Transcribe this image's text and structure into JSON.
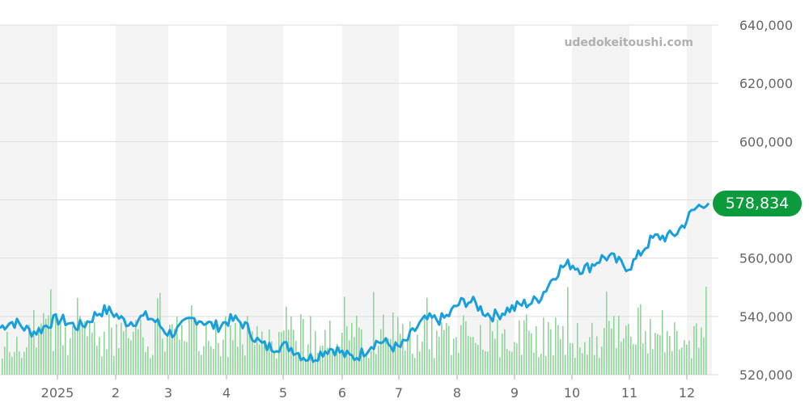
{
  "watermark": "udedokeitoushi.com",
  "current_price": "578,834",
  "colors": {
    "line": "#1a9fdd",
    "bar": "#8fd69a",
    "band": "#f4f4f4",
    "grid": "#dddddd",
    "badge": "#0b9a3c"
  },
  "chart_data": {
    "type": "line",
    "title": "",
    "xlabel": "",
    "ylabel": "",
    "ylim": [
      520000,
      640000
    ],
    "y_ticks": [
      "640,000",
      "620,000",
      "600,000",
      "580,000",
      "560,000",
      "540,000",
      "520,000"
    ],
    "x_tick_labels": [
      "2025",
      "2",
      "3",
      "4",
      "5",
      "6",
      "7",
      "8",
      "9",
      "10",
      "11",
      "12"
    ],
    "grid": true,
    "series": [
      {
        "x": [
          "2024-12",
          "2025-01",
          "2025-02",
          "2025-03",
          "2025-04",
          "2025-05",
          "2025-06",
          "2025-07",
          "2025-08",
          "2025-09",
          "2025-10",
          "2025-11",
          "2025-12"
        ],
        "values": [
          536000,
          537000,
          541000,
          536000,
          539000,
          528000,
          527000,
          531000,
          544000,
          541000,
          558000,
          559000,
          578834
        ]
      }
    ],
    "volume_bars": true
  }
}
